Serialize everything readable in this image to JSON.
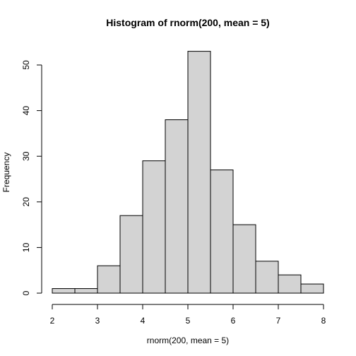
{
  "chart_data": {
    "type": "bar",
    "title": "Histogram of rnorm(200, mean = 5)",
    "xlabel": "rnorm(200, mean = 5)",
    "ylabel": "Frequency",
    "bins": [
      {
        "from": 2.0,
        "to": 2.5,
        "count": 1
      },
      {
        "from": 2.5,
        "to": 3.0,
        "count": 1
      },
      {
        "from": 3.0,
        "to": 3.5,
        "count": 6
      },
      {
        "from": 3.5,
        "to": 4.0,
        "count": 17
      },
      {
        "from": 4.0,
        "to": 4.5,
        "count": 29
      },
      {
        "from": 4.5,
        "to": 5.0,
        "count": 38
      },
      {
        "from": 5.0,
        "to": 5.5,
        "count": 53
      },
      {
        "from": 5.5,
        "to": 6.0,
        "count": 27
      },
      {
        "from": 6.0,
        "to": 6.5,
        "count": 15
      },
      {
        "from": 6.5,
        "to": 7.0,
        "count": 7
      },
      {
        "from": 7.0,
        "to": 7.5,
        "count": 4
      },
      {
        "from": 7.5,
        "to": 8.0,
        "count": 2
      }
    ],
    "xlim": [
      2,
      8
    ],
    "ylim": [
      0,
      55
    ],
    "x_ticks": [
      "2",
      "3",
      "4",
      "5",
      "6",
      "7",
      "8"
    ],
    "y_ticks": [
      "0",
      "10",
      "20",
      "30",
      "40",
      "50"
    ],
    "bar_color": "#d3d3d3",
    "grid": false
  }
}
